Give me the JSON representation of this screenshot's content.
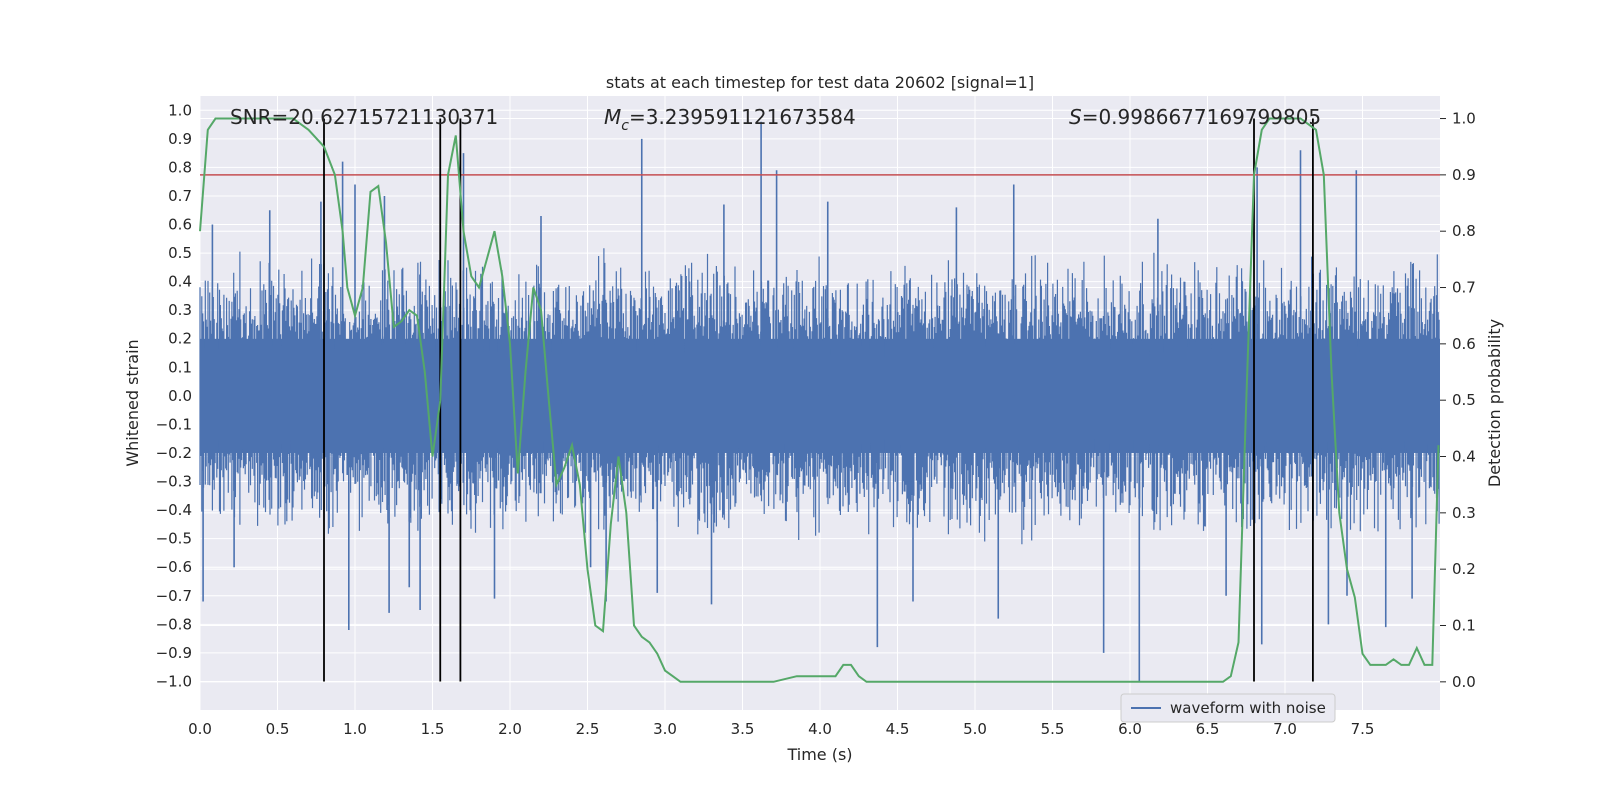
{
  "chart_data": {
    "type": "line",
    "title": "stats at each timestep for test data 20602 [signal=1]",
    "xlabel": "Time (s)",
    "ylabel": "Whitened strain",
    "y2label": "Detection probability",
    "xlim": [
      0.0,
      8.0
    ],
    "ylim": [
      -1.1,
      1.05
    ],
    "y2lim": [
      -0.05,
      1.04
    ],
    "xticks": [
      "0.0",
      "0.5",
      "1.0",
      "1.5",
      "2.0",
      "2.5",
      "3.0",
      "3.5",
      "4.0",
      "4.5",
      "5.0",
      "5.5",
      "6.0",
      "6.5",
      "7.0",
      "7.5"
    ],
    "yticks": [
      "1.0",
      "0.9",
      "0.8",
      "0.7",
      "0.6",
      "0.5",
      "0.4",
      "0.3",
      "0.2",
      "0.1",
      "0.0",
      "-0.1",
      "-0.2",
      "-0.3",
      "-0.4",
      "-0.5",
      "-0.6",
      "-0.7",
      "-0.8",
      "-0.9",
      "-1.0"
    ],
    "y2ticks": [
      "1.0",
      "0.9",
      "0.8",
      "0.7",
      "0.6",
      "0.5",
      "0.4",
      "0.3",
      "0.2",
      "0.1",
      "0.0"
    ],
    "annotations": {
      "snr": "SNR=20.62715721130371",
      "mc_symbol": "M",
      "mc_sub": "c",
      "mc_value": "=3.239591121673584",
      "s_symbol": "S",
      "s_value": "=0.9986677169799805"
    },
    "legend": {
      "label": "waveform with noise",
      "position": "lower-right"
    },
    "grid": true,
    "threshold": {
      "axis": "right",
      "value": 0.9,
      "color": "#c44e52"
    },
    "vlines": [
      0.8,
      1.55,
      1.68,
      6.8,
      7.18
    ],
    "colors": {
      "waveform": "#4c72b0",
      "probability": "#55a868",
      "vline": "#000000",
      "plot_bg": "#eaeaf2"
    },
    "series": [
      {
        "name": "waveform with noise",
        "axis": "left",
        "kind": "noise",
        "envelope_typical": 0.38,
        "spikes": [
          {
            "t": 0.02,
            "v": -0.72
          },
          {
            "t": 0.08,
            "v": 0.6
          },
          {
            "t": 0.22,
            "v": -0.6
          },
          {
            "t": 0.45,
            "v": 0.65
          },
          {
            "t": 0.78,
            "v": 0.68
          },
          {
            "t": 0.92,
            "v": 0.82
          },
          {
            "t": 0.96,
            "v": -0.82
          },
          {
            "t": 1.0,
            "v": 0.74
          },
          {
            "t": 1.19,
            "v": 0.7
          },
          {
            "t": 1.22,
            "v": -0.76
          },
          {
            "t": 1.35,
            "v": -0.67
          },
          {
            "t": 1.42,
            "v": -0.75
          },
          {
            "t": 1.7,
            "v": 0.85
          },
          {
            "t": 1.9,
            "v": -0.71
          },
          {
            "t": 2.2,
            "v": 0.63
          },
          {
            "t": 2.52,
            "v": -0.6
          },
          {
            "t": 2.62,
            "v": -0.72
          },
          {
            "t": 2.85,
            "v": 0.9
          },
          {
            "t": 2.95,
            "v": -0.69
          },
          {
            "t": 3.3,
            "v": -0.73
          },
          {
            "t": 3.38,
            "v": 0.67
          },
          {
            "t": 3.62,
            "v": 0.96
          },
          {
            "t": 3.72,
            "v": 0.79
          },
          {
            "t": 4.05,
            "v": 0.68
          },
          {
            "t": 4.37,
            "v": -0.88
          },
          {
            "t": 4.6,
            "v": -0.72
          },
          {
            "t": 4.88,
            "v": 0.66
          },
          {
            "t": 5.15,
            "v": -0.78
          },
          {
            "t": 5.25,
            "v": 0.74
          },
          {
            "t": 5.83,
            "v": -0.9
          },
          {
            "t": 6.06,
            "v": -1.0
          },
          {
            "t": 6.18,
            "v": 0.62
          },
          {
            "t": 6.62,
            "v": -0.7
          },
          {
            "t": 6.82,
            "v": 0.8
          },
          {
            "t": 6.85,
            "v": -0.87
          },
          {
            "t": 7.1,
            "v": 0.86
          },
          {
            "t": 7.28,
            "v": -0.8
          },
          {
            "t": 7.4,
            "v": -0.7
          },
          {
            "t": 7.46,
            "v": 0.79
          },
          {
            "t": 7.65,
            "v": -0.81
          },
          {
            "t": 7.82,
            "v": -0.71
          }
        ]
      },
      {
        "name": "",
        "axis": "right",
        "x": [
          0.0,
          0.05,
          0.1,
          0.15,
          0.2,
          0.3,
          0.5,
          0.6,
          0.65,
          0.7,
          0.8,
          0.87,
          0.92,
          0.95,
          1.0,
          1.05,
          1.1,
          1.15,
          1.2,
          1.25,
          1.3,
          1.35,
          1.4,
          1.45,
          1.5,
          1.55,
          1.6,
          1.65,
          1.7,
          1.75,
          1.8,
          1.85,
          1.9,
          1.95,
          2.0,
          2.05,
          2.1,
          2.15,
          2.2,
          2.25,
          2.3,
          2.35,
          2.4,
          2.45,
          2.5,
          2.55,
          2.6,
          2.65,
          2.7,
          2.75,
          2.8,
          2.85,
          2.9,
          2.95,
          3.0,
          3.05,
          3.1,
          3.2,
          3.3,
          3.5,
          3.7,
          3.85,
          4.0,
          4.05,
          4.1,
          4.15,
          4.2,
          4.25,
          4.3,
          4.4,
          5.0,
          5.3,
          5.5,
          6.0,
          6.3,
          6.5,
          6.6,
          6.65,
          6.7,
          6.75,
          6.8,
          6.85,
          6.9,
          6.95,
          7.0,
          7.05,
          7.1,
          7.15,
          7.2,
          7.25,
          7.3,
          7.35,
          7.4,
          7.45,
          7.5,
          7.55,
          7.6,
          7.65,
          7.7,
          7.75,
          7.8,
          7.85,
          7.9,
          7.95,
          7.99
        ],
        "y": [
          0.8,
          0.98,
          1.0,
          1.0,
          1.0,
          1.0,
          1.0,
          1.0,
          0.99,
          0.98,
          0.95,
          0.9,
          0.8,
          0.7,
          0.65,
          0.7,
          0.87,
          0.88,
          0.78,
          0.63,
          0.64,
          0.66,
          0.65,
          0.55,
          0.4,
          0.5,
          0.9,
          0.97,
          0.8,
          0.72,
          0.7,
          0.75,
          0.8,
          0.72,
          0.6,
          0.37,
          0.55,
          0.7,
          0.66,
          0.5,
          0.35,
          0.38,
          0.42,
          0.35,
          0.2,
          0.1,
          0.09,
          0.28,
          0.4,
          0.3,
          0.1,
          0.08,
          0.07,
          0.05,
          0.02,
          0.01,
          0.0,
          0.0,
          0.0,
          0.0,
          0.0,
          0.01,
          0.01,
          0.01,
          0.01,
          0.03,
          0.03,
          0.01,
          0.0,
          0.0,
          0.0,
          0.0,
          0.0,
          0.0,
          0.0,
          0.0,
          0.0,
          0.01,
          0.07,
          0.5,
          0.9,
          0.98,
          1.0,
          1.0,
          1.0,
          1.0,
          1.0,
          0.99,
          0.98,
          0.9,
          0.55,
          0.3,
          0.2,
          0.15,
          0.05,
          0.03,
          0.03,
          0.03,
          0.04,
          0.03,
          0.03,
          0.06,
          0.03,
          0.03,
          0.42
        ]
      }
    ]
  }
}
